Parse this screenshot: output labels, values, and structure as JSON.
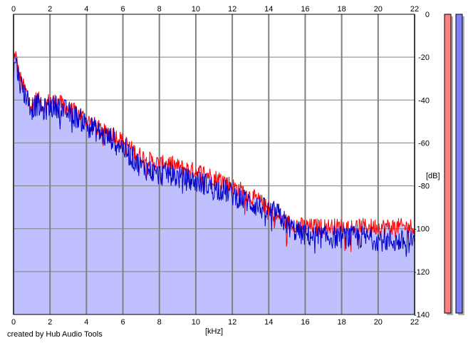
{
  "chart_data": {
    "type": "line",
    "xlabel": "[kHz]",
    "ylabel": "[dB]",
    "xlim": [
      0,
      22
    ],
    "ylim": [
      -140,
      0
    ],
    "x_ticks": [
      0,
      2,
      4,
      6,
      8,
      10,
      12,
      14,
      16,
      18,
      20,
      22
    ],
    "y_ticks": [
      0,
      -20,
      -40,
      -60,
      -80,
      -100,
      -120,
      -140
    ],
    "grid": true,
    "fill_under": true,
    "colors": {
      "background": "#ffffff",
      "fill": "#c0c0ff",
      "grid": "#808080",
      "frame": "#000000"
    },
    "series": [
      {
        "color": "#ff0000",
        "points": [
          [
            0.0,
            -22
          ],
          [
            0.1,
            -18
          ],
          [
            0.3,
            -28
          ],
          [
            0.5,
            -33
          ],
          [
            0.8,
            -38
          ],
          [
            1.0,
            -42
          ],
          [
            1.3,
            -39
          ],
          [
            1.6,
            -43
          ],
          [
            2.0,
            -40
          ],
          [
            2.5,
            -41
          ],
          [
            3.0,
            -44
          ],
          [
            3.5,
            -46
          ],
          [
            4.0,
            -49
          ],
          [
            4.5,
            -52
          ],
          [
            5.0,
            -55
          ],
          [
            5.5,
            -56
          ],
          [
            6.0,
            -59
          ],
          [
            6.5,
            -63
          ],
          [
            7.0,
            -66
          ],
          [
            7.5,
            -68
          ],
          [
            8.0,
            -70
          ],
          [
            8.5,
            -69
          ],
          [
            9.0,
            -71
          ],
          [
            9.5,
            -72
          ],
          [
            10.0,
            -73
          ],
          [
            10.5,
            -74
          ],
          [
            11.0,
            -76
          ],
          [
            11.5,
            -77
          ],
          [
            12.0,
            -80
          ],
          [
            12.5,
            -82
          ],
          [
            13.0,
            -85
          ],
          [
            13.5,
            -87
          ],
          [
            14.0,
            -91
          ],
          [
            14.5,
            -95
          ],
          [
            15.0,
            -97
          ],
          [
            15.5,
            -98
          ],
          [
            16.0,
            -99
          ],
          [
            17.0,
            -99
          ],
          [
            18.0,
            -99
          ],
          [
            19.0,
            -99
          ],
          [
            20.0,
            -99
          ],
          [
            21.0,
            -99
          ],
          [
            22.0,
            -99
          ]
        ]
      },
      {
        "color": "#0000cc",
        "points": [
          [
            0.0,
            -28
          ],
          [
            0.1,
            -20
          ],
          [
            0.3,
            -30
          ],
          [
            0.5,
            -35
          ],
          [
            0.8,
            -40
          ],
          [
            1.0,
            -44
          ],
          [
            1.3,
            -42
          ],
          [
            1.6,
            -45
          ],
          [
            2.0,
            -43
          ],
          [
            2.5,
            -43
          ],
          [
            3.0,
            -46
          ],
          [
            3.5,
            -48
          ],
          [
            4.0,
            -51
          ],
          [
            4.5,
            -54
          ],
          [
            5.0,
            -57
          ],
          [
            5.5,
            -58
          ],
          [
            6.0,
            -62
          ],
          [
            6.5,
            -67
          ],
          [
            7.0,
            -71
          ],
          [
            7.5,
            -73
          ],
          [
            8.0,
            -75
          ],
          [
            8.5,
            -74
          ],
          [
            9.0,
            -76
          ],
          [
            9.5,
            -77
          ],
          [
            10.0,
            -78
          ],
          [
            10.5,
            -79
          ],
          [
            11.0,
            -81
          ],
          [
            11.5,
            -82
          ],
          [
            12.0,
            -84
          ],
          [
            12.5,
            -86
          ],
          [
            13.0,
            -88
          ],
          [
            13.5,
            -90
          ],
          [
            14.0,
            -92
          ],
          [
            14.5,
            -93
          ],
          [
            15.0,
            -98
          ],
          [
            15.5,
            -101
          ],
          [
            16.0,
            -103
          ],
          [
            17.0,
            -104
          ],
          [
            18.0,
            -104
          ],
          [
            19.0,
            -104
          ],
          [
            20.0,
            -105
          ],
          [
            21.0,
            -106
          ],
          [
            22.0,
            -106
          ]
        ]
      }
    ]
  },
  "level_meters": [
    {
      "channel": "left",
      "value_db": -140,
      "color": "#ff8080"
    },
    {
      "channel": "right",
      "value_db": -140,
      "color": "#8080ff"
    }
  ],
  "footer": {
    "credit": "created by Hub Audio Tools"
  }
}
